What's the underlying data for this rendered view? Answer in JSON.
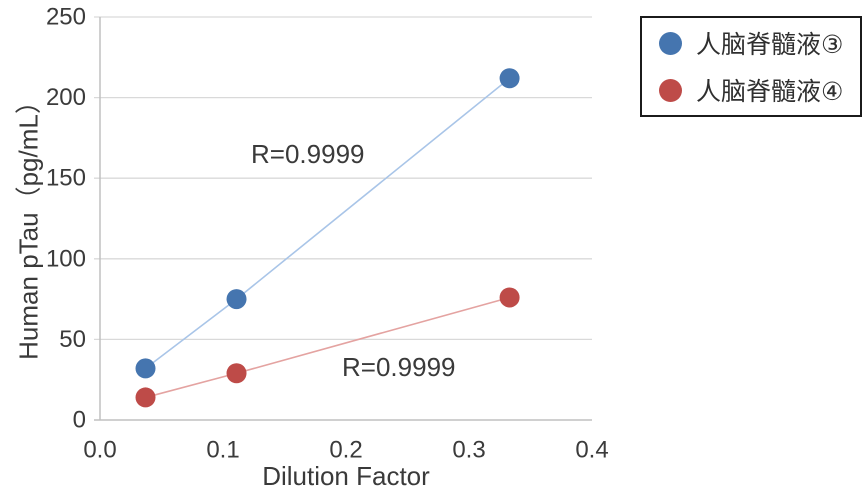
{
  "chart_data": {
    "type": "scatter",
    "title": "",
    "xlabel": "Dilution Factor",
    "ylabel": "Human pTau（pg/mL）",
    "xlim": [
      0,
      0.4
    ],
    "ylim": [
      0,
      250
    ],
    "x_tick_values": [
      0,
      0.1,
      0.2,
      0.3,
      0.4
    ],
    "x_tick_labels": [
      "0.0",
      "0.1",
      "0.2",
      "0.3",
      "0.4"
    ],
    "y_tick_values": [
      0,
      50,
      100,
      150,
      200,
      250
    ],
    "y_tick_labels": [
      "0",
      "50",
      "100",
      "150",
      "200",
      "250"
    ],
    "grid": "horizontal",
    "legend_position": "outside-top-right",
    "x": [
      0.037,
      0.111,
      0.333
    ],
    "series": [
      {
        "name": "人脑脊髓液③",
        "marker_color": "#4575AF",
        "line_color": "#A9C5E8",
        "values": [
          32,
          75,
          212
        ],
        "r_label": "R=0.9999"
      },
      {
        "name": "人脑脊髓液④",
        "marker_color": "#BE4B48",
        "line_color": "#E4A3A1",
        "values": [
          14,
          29,
          76
        ],
        "r_label": "R=0.9999"
      }
    ]
  },
  "axes": {
    "x_title": "Dilution Factor",
    "y_title": "Human pTau（pg/mL）"
  },
  "annotations": {
    "blue_r": "R=0.9999",
    "red_r": "R=0.9999"
  },
  "legend": {
    "items": [
      {
        "label": "人脑脊髓液③",
        "color": "#4575AF"
      },
      {
        "label": "人脑脊髓液④",
        "color": "#BE4B48"
      }
    ]
  },
  "colors": {
    "gridline": "#D9D9D9",
    "axis_line": "#C0C0C0",
    "tick_text": "#3b3b3b",
    "legend_border": "#1b1b1b"
  }
}
